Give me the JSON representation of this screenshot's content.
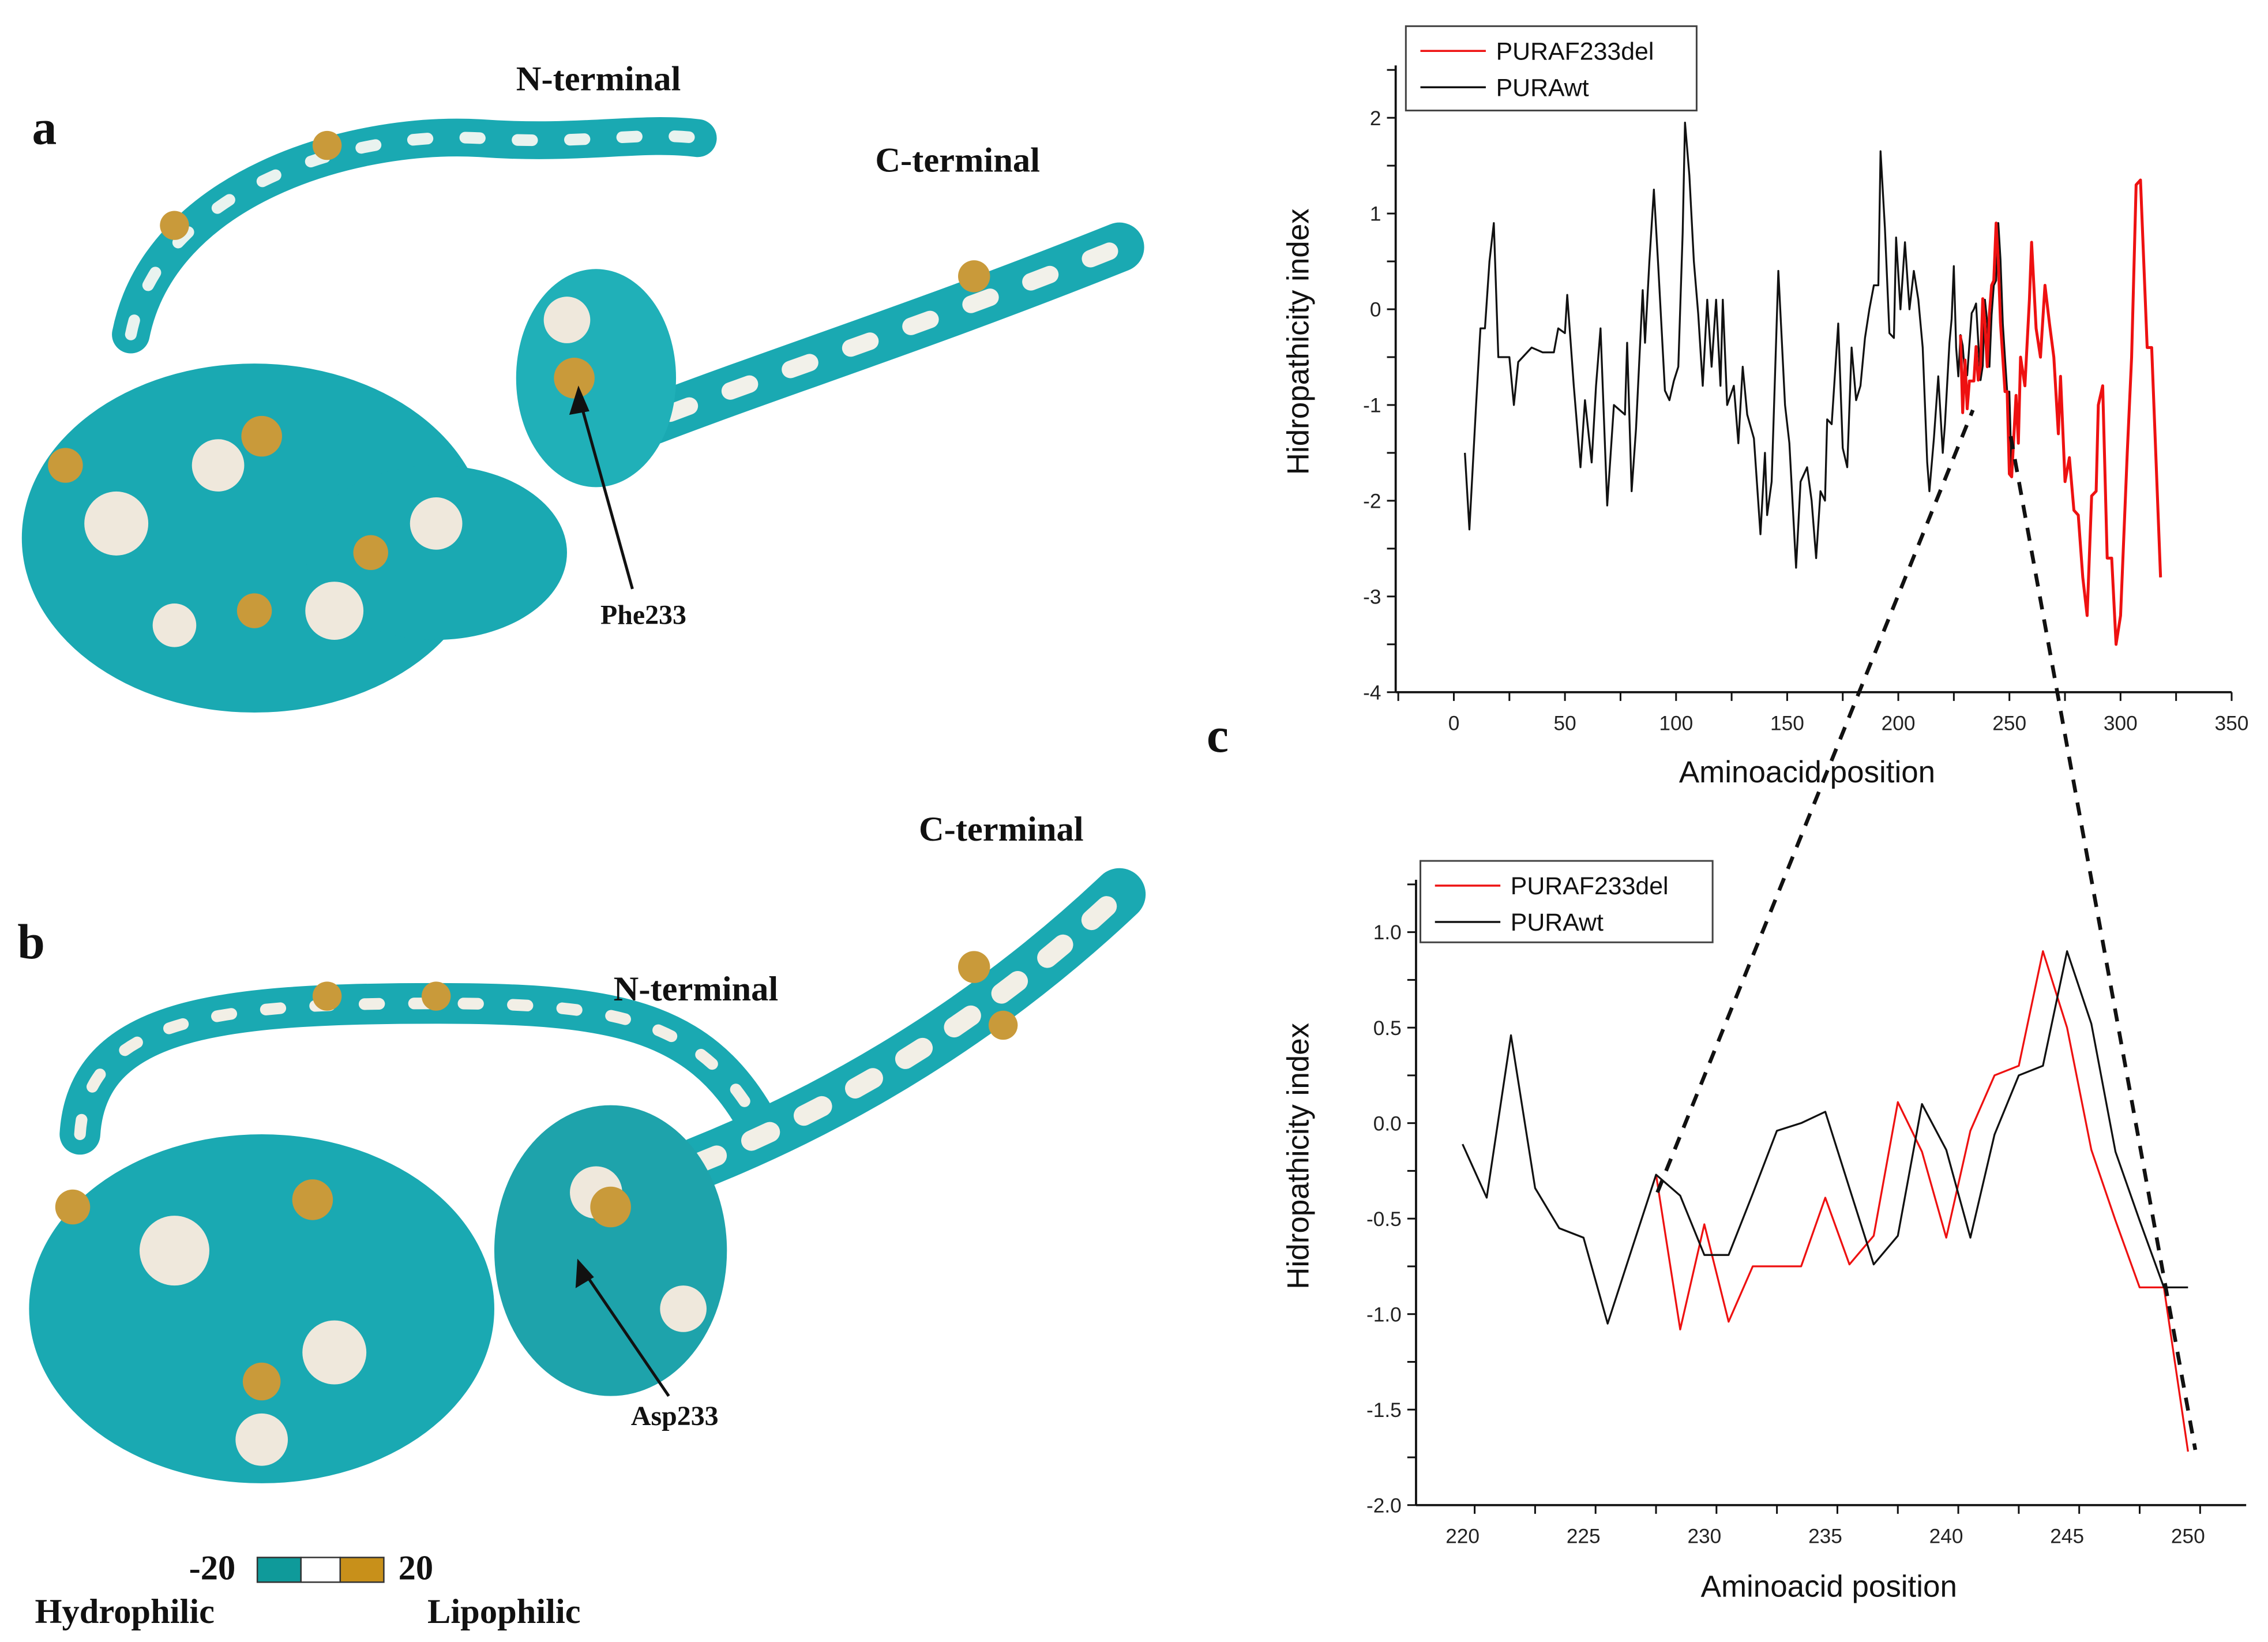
{
  "panels": {
    "a": "a",
    "b": "b",
    "c": "c"
  },
  "structure_a": {
    "n_terminal": "N-terminal",
    "c_terminal": "C-terminal",
    "residue": "Phe233"
  },
  "structure_b": {
    "n_terminal": "N-terminal",
    "c_terminal": "C-terminal",
    "residue": "Asp233"
  },
  "scale_bar": {
    "min": "-20",
    "max": "20",
    "left_label": "Hydrophilic",
    "right_label": "Lipophilic",
    "colors": [
      "#0f9a9a",
      "#ffffff",
      "#c8901a"
    ]
  },
  "colors": {
    "teal": "#1aacb4",
    "gold": "#c99a3a",
    "wt": "#111111",
    "del": "#ee1111"
  },
  "chart_data": [
    {
      "type": "line",
      "title": "",
      "xlabel": "Aminoacid position",
      "ylabel": "Hidropathicity index",
      "xlim": [
        -25,
        350
      ],
      "ylim": [
        -4,
        2.5
      ],
      "xticks": [
        "0",
        "50",
        "100",
        "150",
        "200",
        "250",
        "300",
        "350"
      ],
      "yticks": [
        "2",
        "1",
        "0",
        "-1",
        "-2",
        "-3",
        "-4"
      ],
      "legend_position": "top-left",
      "series": [
        {
          "name": "PURAF233del",
          "color": "#ee1111",
          "x": [
            228,
            229,
            230,
            231,
            232,
            233,
            234,
            235,
            236,
            237,
            238,
            239,
            240,
            241,
            242,
            243,
            244,
            245,
            246,
            247,
            248,
            249,
            250,
            251,
            253,
            254,
            255,
            257,
            259,
            260,
            262,
            264,
            266,
            268,
            270,
            272,
            273,
            275,
            277,
            279,
            281,
            283,
            285,
            287,
            289,
            290,
            292,
            294,
            296,
            298,
            300,
            303,
            305,
            307,
            309,
            312,
            314,
            318
          ],
          "y": [
            -0.27,
            -1.08,
            -0.53,
            -1.04,
            -0.75,
            -0.75,
            -0.75,
            -0.39,
            -0.74,
            -0.59,
            0.11,
            -0.15,
            -0.6,
            -0.04,
            0.25,
            0.3,
            0.9,
            0.5,
            -0.14,
            -0.51,
            -0.86,
            -0.86,
            -1.72,
            -1.75,
            -0.9,
            -1.4,
            -0.5,
            -0.8,
            0.1,
            0.7,
            -0.2,
            -0.5,
            0.25,
            -0.15,
            -0.5,
            -1.3,
            -0.7,
            -1.8,
            -1.55,
            -2.1,
            -2.15,
            -2.8,
            -3.2,
            -1.95,
            -1.9,
            -1.0,
            -0.8,
            -2.6,
            -2.6,
            -3.5,
            -3.2,
            -1.5,
            -0.5,
            1.3,
            1.35,
            -0.4,
            -0.4,
            -2.8
          ]
        },
        {
          "name": "PURAwt",
          "color": "#111111",
          "x": [
            5,
            7,
            10,
            12,
            14,
            16,
            18,
            20,
            25,
            27,
            29,
            35,
            40,
            45,
            47,
            50,
            51,
            54,
            57,
            59,
            62,
            64,
            66,
            69,
            72,
            77,
            78,
            80,
            82,
            85,
            86,
            88,
            90,
            92,
            95,
            97,
            99,
            101,
            103,
            104,
            106,
            108,
            110,
            112,
            114,
            116,
            118,
            120,
            121,
            123,
            126,
            128,
            130,
            132,
            135,
            138,
            140,
            141,
            143,
            146,
            149,
            151,
            154,
            156,
            159,
            161,
            163,
            165,
            167,
            168,
            170,
            173,
            175,
            177,
            179,
            181,
            183,
            185,
            187,
            189,
            191,
            192,
            194,
            196,
            198,
            199,
            201,
            203,
            205,
            207,
            209,
            211,
            213,
            214,
            216,
            218,
            220,
            221,
            223,
            224,
            225,
            226,
            227,
            228,
            229,
            230,
            231,
            232,
            233,
            234,
            235,
            236,
            237,
            238,
            239,
            240,
            241,
            242,
            243,
            244,
            245,
            246,
            247,
            248,
            249,
            250,
            251,
            253,
            254,
            255,
            257,
            259,
            260,
            262,
            264,
            266,
            268,
            270,
            272,
            273,
            275,
            277,
            279,
            281,
            283,
            285,
            287,
            289,
            290,
            292,
            294,
            296,
            298,
            300,
            303,
            305,
            307,
            309,
            312,
            314,
            318
          ],
          "y": [
            -1.5,
            -2.3,
            -1.0,
            -0.2,
            -0.2,
            0.5,
            0.9,
            -0.5,
            -0.5,
            -1.0,
            -0.55,
            -0.4,
            -0.45,
            -0.45,
            -0.2,
            -0.25,
            0.15,
            -0.8,
            -1.65,
            -0.95,
            -1.6,
            -0.8,
            -0.2,
            -2.05,
            -1.0,
            -1.1,
            -0.35,
            -1.9,
            -1.25,
            0.2,
            -0.35,
            0.5,
            1.25,
            0.45,
            -0.85,
            -0.95,
            -0.75,
            -0.6,
            0.8,
            1.95,
            1.4,
            0.5,
            -0.05,
            -0.8,
            0.1,
            -0.6,
            0.1,
            -0.8,
            0.1,
            -1.0,
            -0.8,
            -1.4,
            -0.6,
            -1.1,
            -1.35,
            -2.35,
            -1.5,
            -2.15,
            -1.8,
            0.4,
            -1.0,
            -1.4,
            -2.7,
            -1.8,
            -1.65,
            -2.0,
            -2.6,
            -1.9,
            -2.0,
            -1.15,
            -1.2,
            -0.15,
            -1.45,
            -1.65,
            -0.4,
            -0.95,
            -0.8,
            -0.3,
            0.0,
            0.25,
            0.25,
            1.65,
            0.85,
            -0.25,
            -0.3,
            0.75,
            0.0,
            0.7,
            0.0,
            0.4,
            0.1,
            -0.4,
            -1.6,
            -1.9,
            -1.35,
            -0.7,
            -1.5,
            -1.2,
            -0.35,
            -0.1,
            0.45,
            -0.4,
            -0.7,
            -0.27,
            -0.38,
            -0.69,
            -0.69,
            -0.37,
            -0.04,
            0.0,
            0.06,
            -0.34,
            -0.74,
            -0.59,
            0.1,
            -0.14,
            -0.6,
            -0.06,
            0.25,
            0.3,
            0.9,
            0.52,
            -0.15,
            -0.51,
            -0.86,
            -0.86,
            -1.75,
            -0.9,
            -1.4,
            -0.5,
            -0.8,
            0.1,
            0.7,
            -0.2,
            -0.5,
            0.25,
            -0.15,
            -0.5,
            -1.3,
            -0.7,
            -1.8,
            -1.55,
            -2.1,
            -2.15,
            -2.8,
            -3.2,
            -1.95,
            -1.9,
            -1.0,
            -0.8,
            -2.6,
            -2.6,
            -3.5,
            -3.2,
            -1.5,
            -0.5,
            1.3,
            1.35,
            -0.4,
            -0.4,
            -2.8
          ]
        }
      ]
    },
    {
      "type": "line",
      "title": "",
      "xlabel": "Aminoacid position",
      "ylabel": "Hidropathicity index",
      "xlim": [
        218,
        252.5
      ],
      "ylim": [
        -2.0,
        1.25
      ],
      "xticks": [
        "220",
        "225",
        "230",
        "235",
        "240",
        "245",
        "250"
      ],
      "yticks": [
        "1.0",
        "0.5",
        "0.0",
        "-0.5",
        "-1.0",
        "-1.5",
        "-2.0"
      ],
      "legend_position": "top-left",
      "series": [
        {
          "name": "PURAF233del",
          "color": "#ee1111",
          "x": [
            228,
            229,
            230,
            231,
            232,
            233,
            234,
            235,
            236,
            237,
            238,
            239,
            240,
            241,
            242,
            243,
            244,
            245,
            246,
            247,
            248,
            249,
            250
          ],
          "y": [
            -0.27,
            -1.08,
            -0.53,
            -1.04,
            -0.75,
            -0.75,
            -0.75,
            -0.39,
            -0.74,
            -0.59,
            0.11,
            -0.15,
            -0.6,
            -0.04,
            0.25,
            0.3,
            0.9,
            0.5,
            -0.14,
            -0.51,
            -0.86,
            -0.86,
            -1.72
          ]
        },
        {
          "name": "PURAwt",
          "color": "#111111",
          "x": [
            220,
            221,
            222,
            223,
            224,
            225,
            226,
            227,
            228,
            229,
            230,
            231,
            232,
            233,
            234,
            235,
            236,
            237,
            238,
            239,
            240,
            241,
            242,
            243,
            244,
            245,
            246,
            247,
            248,
            249,
            250
          ],
          "y": [
            -0.11,
            -0.39,
            0.46,
            -0.34,
            -0.55,
            -0.6,
            -1.05,
            -0.66,
            -0.27,
            -0.38,
            -0.69,
            -0.69,
            -0.37,
            -0.04,
            0.0,
            0.06,
            -0.34,
            -0.74,
            -0.59,
            0.1,
            -0.14,
            -0.6,
            -0.06,
            0.25,
            0.3,
            0.9,
            0.52,
            -0.15,
            -0.51,
            -0.86,
            -0.86
          ]
        }
      ]
    }
  ]
}
